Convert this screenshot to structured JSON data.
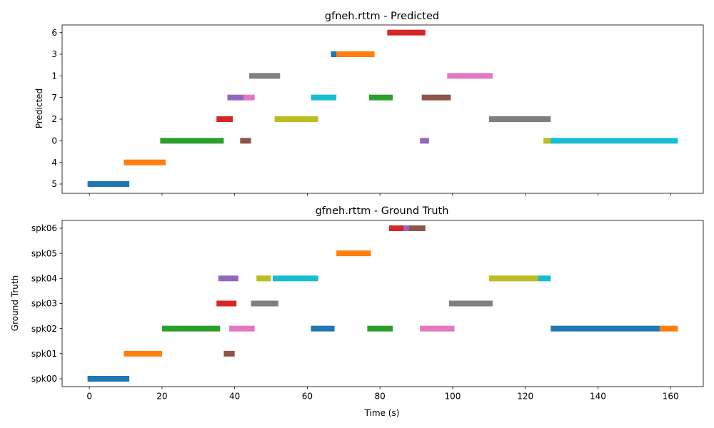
{
  "chart_data": [
    {
      "type": "timeline",
      "title": "gfneh.rttm - Predicted",
      "ylabel": "Predicted",
      "xlabel": "",
      "xlim": [
        -7.5,
        169
      ],
      "x_ticks": [
        0,
        20,
        40,
        60,
        80,
        100,
        120,
        140,
        160
      ],
      "x_tick_labels_visible": false,
      "grid": false,
      "rows": [
        "5",
        "4",
        "0",
        "2",
        "7",
        "1",
        "3",
        "6"
      ],
      "segments": [
        {
          "row": "5",
          "start": -0.5,
          "end": 11,
          "color": "#1f77b4"
        },
        {
          "row": "4",
          "start": 9.5,
          "end": 21,
          "color": "#ff7f0e"
        },
        {
          "row": "0",
          "start": 19.5,
          "end": 37,
          "color": "#2ca02c"
        },
        {
          "row": "2",
          "start": 35,
          "end": 39.5,
          "color": "#d62728"
        },
        {
          "row": "7",
          "start": 38,
          "end": 42.5,
          "color": "#9467bd"
        },
        {
          "row": "0",
          "start": 41.5,
          "end": 44.5,
          "color": "#8c564b"
        },
        {
          "row": "7",
          "start": 42.5,
          "end": 45.5,
          "color": "#e377c2"
        },
        {
          "row": "1",
          "start": 44,
          "end": 52.5,
          "color": "#7f7f7f"
        },
        {
          "row": "2",
          "start": 51,
          "end": 63,
          "color": "#bcbd22"
        },
        {
          "row": "7",
          "start": 61,
          "end": 68,
          "color": "#17becf"
        },
        {
          "row": "3",
          "start": 66.5,
          "end": 68.5,
          "color": "#1f77b4"
        },
        {
          "row": "3",
          "start": 68,
          "end": 78.5,
          "color": "#ff7f0e"
        },
        {
          "row": "7",
          "start": 77,
          "end": 83.5,
          "color": "#2ca02c"
        },
        {
          "row": "6",
          "start": 82,
          "end": 92.5,
          "color": "#d62728"
        },
        {
          "row": "0",
          "start": 91,
          "end": 93.5,
          "color": "#9467bd"
        },
        {
          "row": "7",
          "start": 91.5,
          "end": 99.5,
          "color": "#8c564b"
        },
        {
          "row": "1",
          "start": 98.5,
          "end": 111,
          "color": "#e377c2"
        },
        {
          "row": "2",
          "start": 110,
          "end": 127,
          "color": "#7f7f7f"
        },
        {
          "row": "0",
          "start": 125,
          "end": 127.5,
          "color": "#bcbd22"
        },
        {
          "row": "0",
          "start": 127,
          "end": 162,
          "color": "#17becf"
        }
      ]
    },
    {
      "type": "timeline",
      "title": "gfneh.rttm - Ground Truth",
      "ylabel": "Ground Truth",
      "xlabel": "Time (s)",
      "xlim": [
        -7.5,
        169
      ],
      "x_ticks": [
        0,
        20,
        40,
        60,
        80,
        100,
        120,
        140,
        160
      ],
      "x_tick_labels": [
        "0",
        "20",
        "40",
        "60",
        "80",
        "100",
        "120",
        "140",
        "160"
      ],
      "grid": false,
      "rows": [
        "spk00",
        "spk01",
        "spk02",
        "spk03",
        "spk04",
        "spk05",
        "spk06"
      ],
      "segments": [
        {
          "row": "spk00",
          "start": -0.5,
          "end": 11,
          "color": "#1f77b4"
        },
        {
          "row": "spk01",
          "start": 9.5,
          "end": 20,
          "color": "#ff7f0e"
        },
        {
          "row": "spk02",
          "start": 20,
          "end": 36,
          "color": "#2ca02c"
        },
        {
          "row": "spk03",
          "start": 35,
          "end": 40.5,
          "color": "#d62728"
        },
        {
          "row": "spk04",
          "start": 35.5,
          "end": 41,
          "color": "#9467bd"
        },
        {
          "row": "spk01",
          "start": 37,
          "end": 40,
          "color": "#8c564b"
        },
        {
          "row": "spk02",
          "start": 38.5,
          "end": 45.5,
          "color": "#e377c2"
        },
        {
          "row": "spk03",
          "start": 44.5,
          "end": 52,
          "color": "#7f7f7f"
        },
        {
          "row": "spk04",
          "start": 46,
          "end": 50,
          "color": "#bcbd22"
        },
        {
          "row": "spk04",
          "start": 50.5,
          "end": 63,
          "color": "#17becf"
        },
        {
          "row": "spk02",
          "start": 61,
          "end": 67.5,
          "color": "#1f77b4"
        },
        {
          "row": "spk05",
          "start": 68,
          "end": 77.5,
          "color": "#ff7f0e"
        },
        {
          "row": "spk02",
          "start": 76.5,
          "end": 83.5,
          "color": "#2ca02c"
        },
        {
          "row": "spk06",
          "start": 82.5,
          "end": 87,
          "color": "#d62728"
        },
        {
          "row": "spk06",
          "start": 86.5,
          "end": 88.5,
          "color": "#9467bd"
        },
        {
          "row": "spk06",
          "start": 88,
          "end": 92.5,
          "color": "#8c564b"
        },
        {
          "row": "spk02",
          "start": 91,
          "end": 100.5,
          "color": "#e377c2"
        },
        {
          "row": "spk03",
          "start": 99,
          "end": 111,
          "color": "#7f7f7f"
        },
        {
          "row": "spk04",
          "start": 110,
          "end": 123.5,
          "color": "#bcbd22"
        },
        {
          "row": "spk04",
          "start": 123.5,
          "end": 127,
          "color": "#17becf"
        },
        {
          "row": "spk02",
          "start": 127,
          "end": 157,
          "color": "#1f77b4"
        },
        {
          "row": "spk02",
          "start": 157,
          "end": 162,
          "color": "#ff7f0e"
        }
      ]
    }
  ]
}
